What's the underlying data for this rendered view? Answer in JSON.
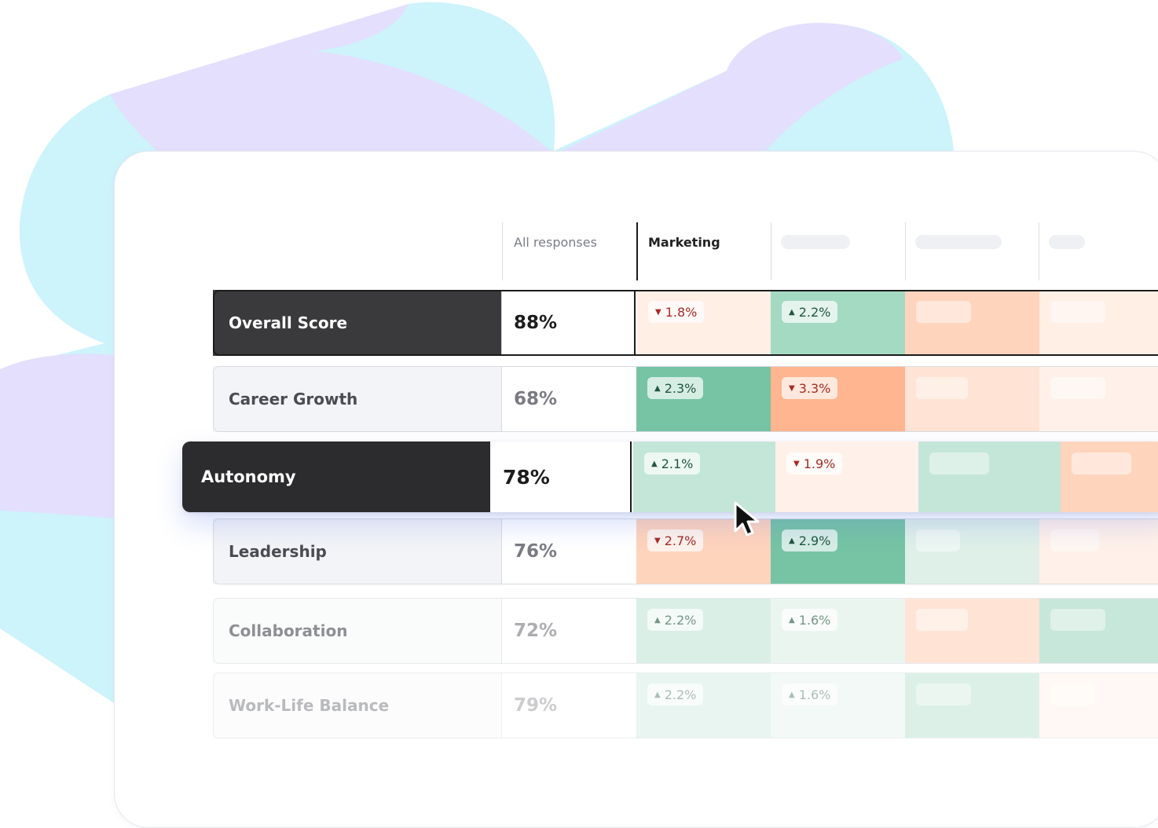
{
  "colors": {
    "dark_label": "#3a3a3c",
    "positive_strong": "#76c4a4",
    "positive_medium": "#a4d9c2",
    "positive_light": "#c4e6d8",
    "negative_strong": "#ffb58f",
    "negative_medium": "#ffd4bd",
    "negative_light": "#ffefe5",
    "blob_cyan": "#cdf3fb",
    "blob_lavender": "#e3dffd"
  },
  "columns": {
    "all_responses": "All responses",
    "marketing": "Marketing"
  },
  "rows": [
    {
      "label": "Overall Score",
      "value": "88%",
      "changes": [
        {
          "text": "1.8%",
          "dir": "down"
        },
        {
          "text": "2.2%",
          "dir": "up"
        },
        {
          "text": ""
        },
        {
          "text": ""
        }
      ]
    },
    {
      "label": "Career Growth",
      "value": "68%",
      "changes": [
        {
          "text": "2.3%",
          "dir": "up"
        },
        {
          "text": "3.3%",
          "dir": "down"
        },
        {
          "text": ""
        },
        {
          "text": ""
        }
      ]
    },
    {
      "label": "Autonomy",
      "value": "78%",
      "changes": [
        {
          "text": "2.1%",
          "dir": "up"
        },
        {
          "text": "1.9%",
          "dir": "down"
        },
        {
          "text": ""
        },
        {
          "text": ""
        }
      ]
    },
    {
      "label": "Leadership",
      "value": "76%",
      "changes": [
        {
          "text": "2.7%",
          "dir": "down"
        },
        {
          "text": "2.9%",
          "dir": "up"
        },
        {
          "text": ""
        },
        {
          "text": ""
        }
      ]
    },
    {
      "label": "Collaboration",
      "value": "72%",
      "changes": [
        {
          "text": "2.2%",
          "dir": "up"
        },
        {
          "text": "1.6%",
          "dir": "up"
        },
        {
          "text": ""
        },
        {
          "text": ""
        }
      ]
    },
    {
      "label": "Work-Life Balance",
      "value": "79%",
      "changes": [
        {
          "text": "2.2%",
          "dir": "up"
        },
        {
          "text": "1.6%",
          "dir": "up"
        },
        {
          "text": ""
        },
        {
          "text": ""
        }
      ]
    }
  ],
  "icons": {
    "up_arrow": "▲",
    "down_arrow": "▼",
    "cursor": "mouse-pointer-icon"
  }
}
